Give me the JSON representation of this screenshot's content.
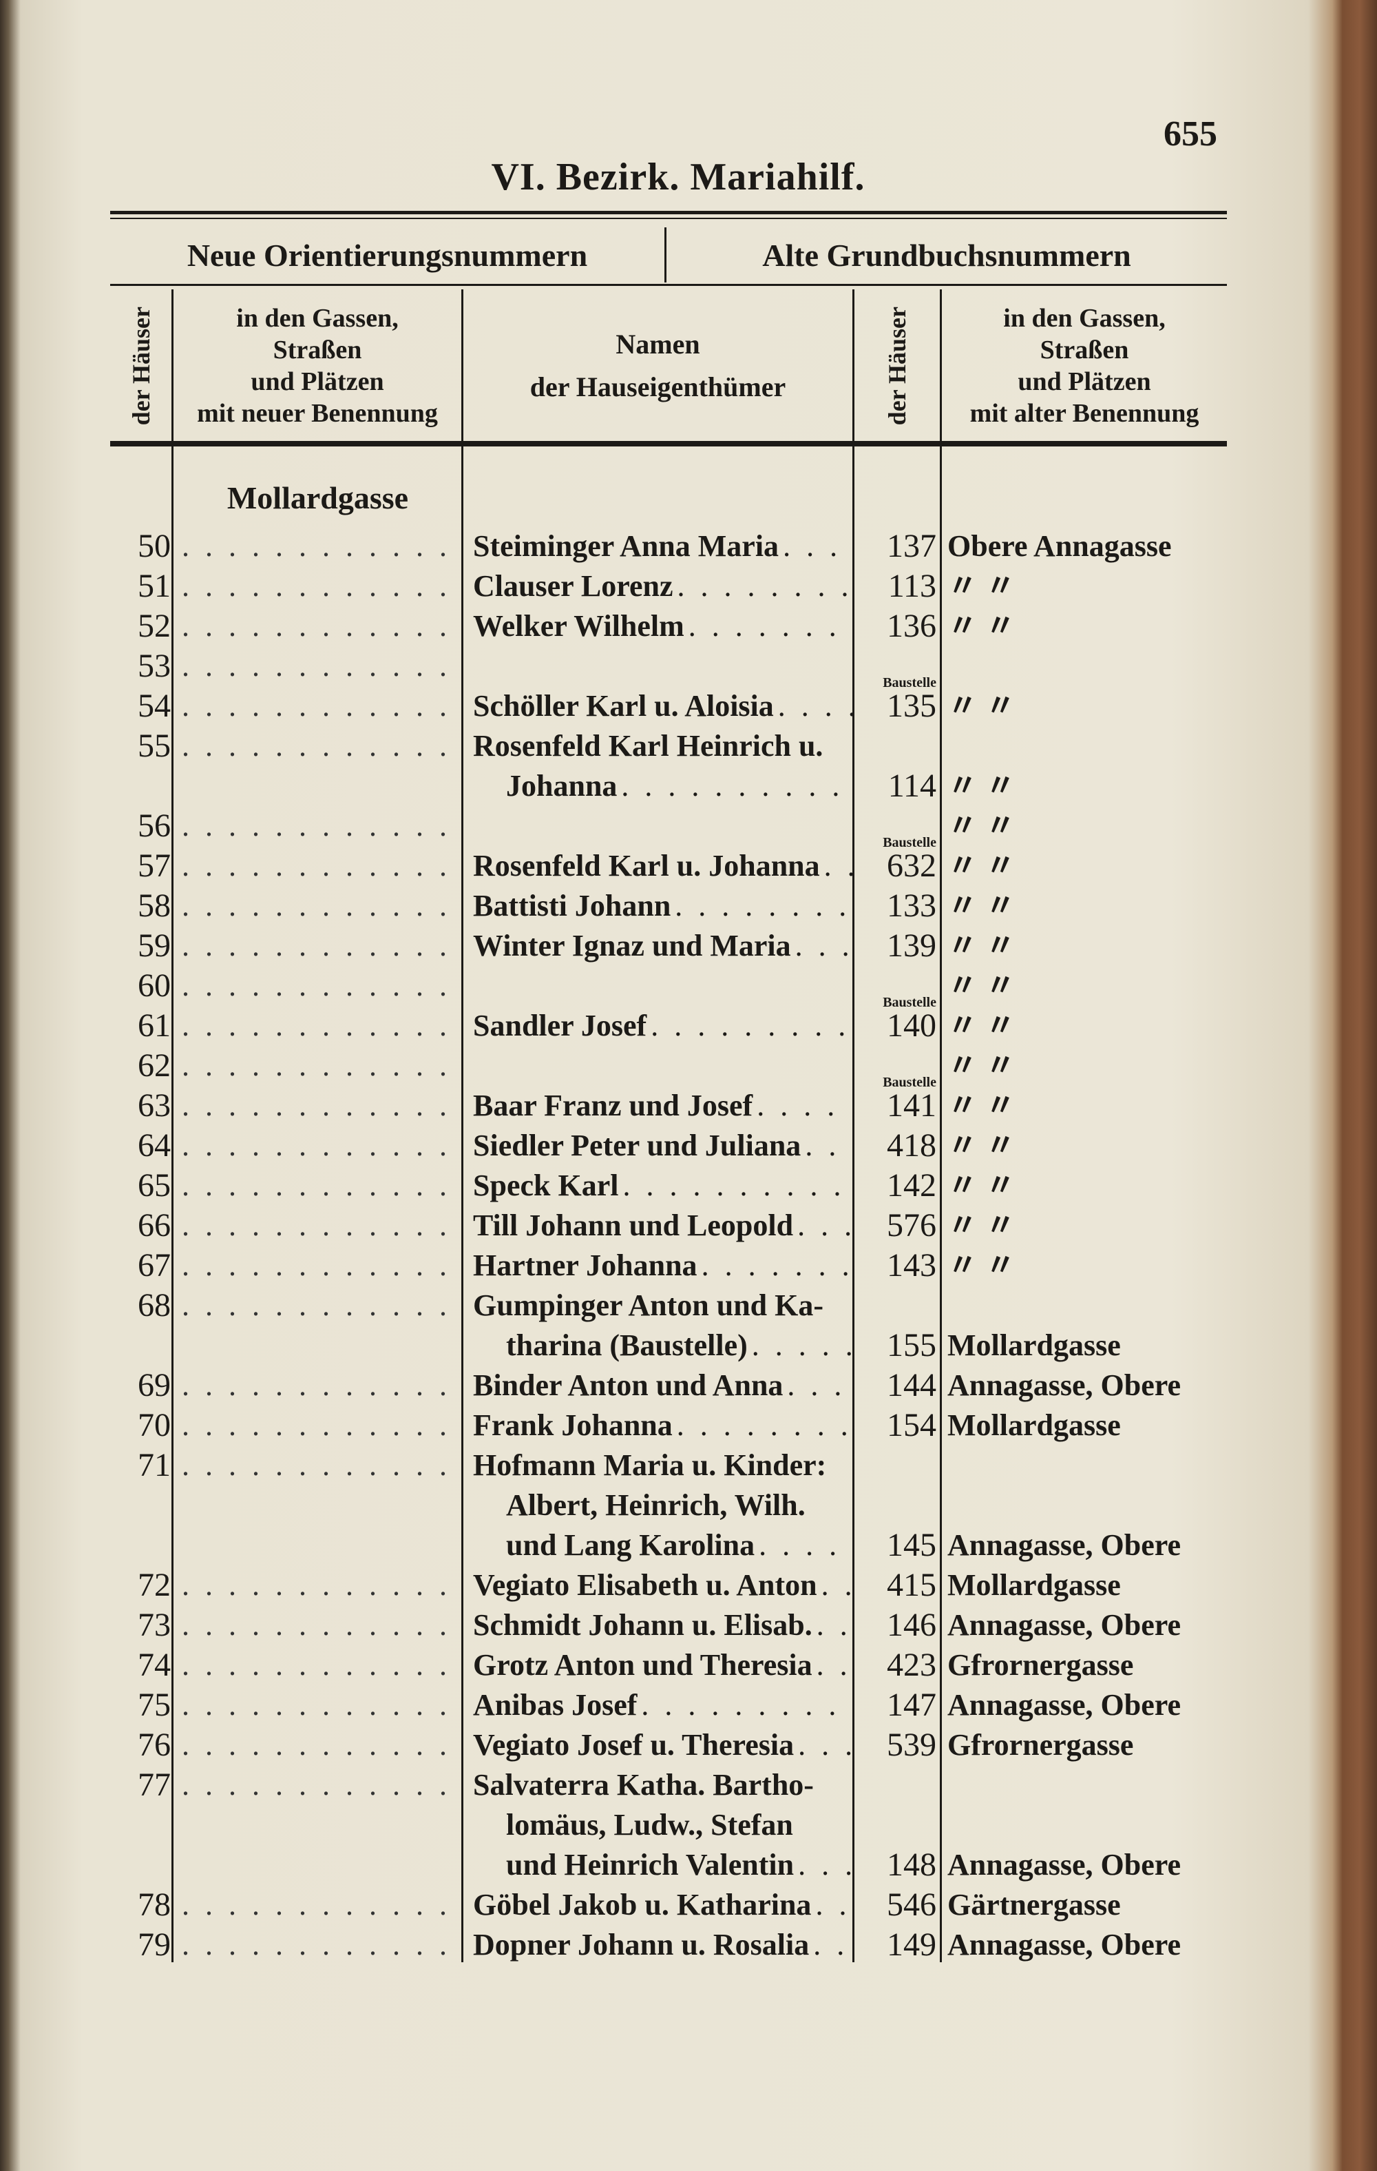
{
  "page_number": "655",
  "title": "VI. Bezirk. Mariahilf.",
  "section_headers": {
    "new": "Neue Orientierungsnummern",
    "old": "Alte Grundbuchsnummern"
  },
  "columns": {
    "new_no": "der Häuser",
    "new_street": [
      "in den Gassen,",
      "Straßen",
      "und Plätzen",
      "mit neuer Benennung"
    ],
    "owners": [
      "Namen",
      "der Hauseigenthümer"
    ],
    "old_no": "der Häuser",
    "old_street": [
      "in den Gassen,",
      "Straßen",
      "und Plätzen",
      "mit alter Benennung"
    ]
  },
  "street_heading": "Mollardgasse",
  "entries": [
    {
      "no": "50",
      "lines": [
        "Steiminger Anna Maria"
      ],
      "old_no": "137",
      "old_street": "Obere Annagasse",
      "note": ""
    },
    {
      "no": "51",
      "lines": [
        "Clauser Lorenz"
      ],
      "old_no": "113",
      "old_street": "〃    〃",
      "note": ""
    },
    {
      "no": "52",
      "lines": [
        "Welker Wilhelm"
      ],
      "old_no": "136",
      "old_street": "〃    〃",
      "note": ""
    },
    {
      "no": "53",
      "lines": [
        ""
      ],
      "old_no": "",
      "old_street": "",
      "note": "Baustelle"
    },
    {
      "no": "54",
      "lines": [
        "Schöller Karl u. Aloisia"
      ],
      "old_no": "135",
      "old_street": "〃    〃",
      "note": ""
    },
    {
      "no": "55",
      "lines": [
        "Rosenfeld Karl Heinrich u.",
        "Johanna"
      ],
      "old_no": "114",
      "old_street": "〃    〃",
      "note": ""
    },
    {
      "no": "56",
      "lines": [
        ""
      ],
      "old_no": "",
      "old_street": "〃    〃",
      "note": "Baustelle"
    },
    {
      "no": "57",
      "lines": [
        "Rosenfeld Karl u. Johanna"
      ],
      "old_no": "632",
      "old_street": "〃    〃",
      "note": ""
    },
    {
      "no": "58",
      "lines": [
        "Battisti Johann"
      ],
      "old_no": "133",
      "old_street": "〃    〃",
      "note": ""
    },
    {
      "no": "59",
      "lines": [
        "Winter Ignaz und Maria"
      ],
      "old_no": "139",
      "old_street": "〃    〃",
      "note": ""
    },
    {
      "no": "60",
      "lines": [
        ""
      ],
      "old_no": "",
      "old_street": "〃    〃",
      "note": "Baustelle"
    },
    {
      "no": "61",
      "lines": [
        "Sandler Josef"
      ],
      "old_no": "140",
      "old_street": "〃    〃",
      "note": ""
    },
    {
      "no": "62",
      "lines": [
        ""
      ],
      "old_no": "",
      "old_street": "〃    〃",
      "note": "Baustelle"
    },
    {
      "no": "63",
      "lines": [
        "Baar Franz und Josef"
      ],
      "old_no": "141",
      "old_street": "〃    〃",
      "note": ""
    },
    {
      "no": "64",
      "lines": [
        "Siedler Peter und Juliana"
      ],
      "old_no": "418",
      "old_street": "〃    〃",
      "note": ""
    },
    {
      "no": "65",
      "lines": [
        "Speck Karl"
      ],
      "old_no": "142",
      "old_street": "〃    〃",
      "note": ""
    },
    {
      "no": "66",
      "lines": [
        "Till Johann und Leopold"
      ],
      "old_no": "576",
      "old_street": "〃    〃",
      "note": ""
    },
    {
      "no": "67",
      "lines": [
        "Hartner Johanna"
      ],
      "old_no": "143",
      "old_street": "〃    〃",
      "note": ""
    },
    {
      "no": "68",
      "lines": [
        "Gumpinger Anton und Ka-",
        "tharina (Baustelle)"
      ],
      "old_no": "155",
      "old_street": "Mollardgasse",
      "note": ""
    },
    {
      "no": "69",
      "lines": [
        "Binder Anton und Anna"
      ],
      "old_no": "144",
      "old_street": "Annagasse, Obere",
      "note": ""
    },
    {
      "no": "70",
      "lines": [
        "Frank Johanna"
      ],
      "old_no": "154",
      "old_street": "Mollardgasse",
      "note": ""
    },
    {
      "no": "71",
      "lines": [
        "Hofmann Maria u. Kinder:",
        "Albert, Heinrich, Wilh.",
        "und Lang Karolina"
      ],
      "old_no": "145",
      "old_street": "Annagasse, Obere",
      "note": ""
    },
    {
      "no": "72",
      "lines": [
        "Vegiato Elisabeth u. Anton"
      ],
      "old_no": "415",
      "old_street": "Mollardgasse",
      "note": ""
    },
    {
      "no": "73",
      "lines": [
        "Schmidt Johann u. Elisab."
      ],
      "old_no": "146",
      "old_street": "Annagasse, Obere",
      "note": ""
    },
    {
      "no": "74",
      "lines": [
        "Grotz Anton und Theresia"
      ],
      "old_no": "423",
      "old_street": "Gfrornergasse",
      "note": ""
    },
    {
      "no": "75",
      "lines": [
        "Anibas Josef"
      ],
      "old_no": "147",
      "old_street": "Annagasse, Obere",
      "note": ""
    },
    {
      "no": "76",
      "lines": [
        "Vegiato Josef u. Theresia"
      ],
      "old_no": "539",
      "old_street": "Gfrornergasse",
      "note": ""
    },
    {
      "no": "77",
      "lines": [
        "Salvaterra Katha. Bartho-",
        "lomäus, Ludw., Stefan",
        "und Heinrich Valentin"
      ],
      "old_no": "148",
      "old_street": "Annagasse, Obere",
      "note": ""
    },
    {
      "no": "78",
      "lines": [
        "Göbel Jakob u. Katharina"
      ],
      "old_no": "546",
      "old_street": "Gärtnergasse",
      "note": ""
    },
    {
      "no": "79",
      "lines": [
        "Dopner Johann u. Rosalia"
      ],
      "old_no": "149",
      "old_street": "Annagasse, Obere",
      "note": ""
    }
  ]
}
